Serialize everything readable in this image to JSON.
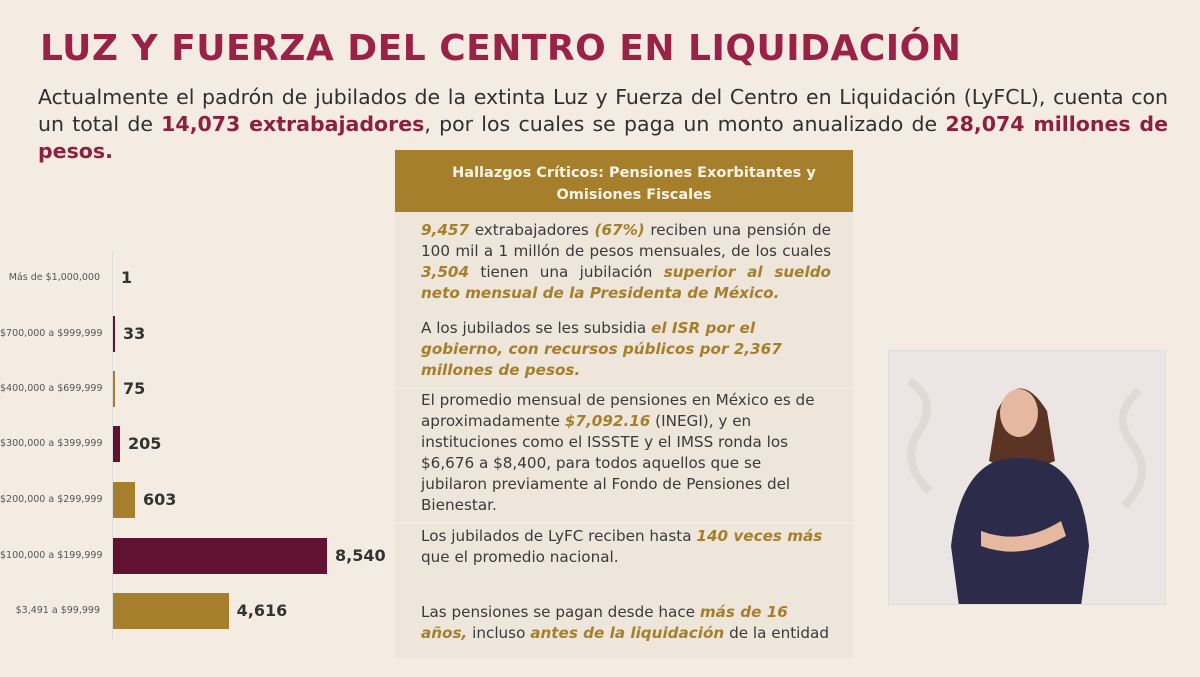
{
  "slide": {
    "title": "LUZ Y FUERZA DEL CENTRO EN LIQUIDACIÓN",
    "intro": [
      {
        "text": "Actualmente el padrón de jubilados de la extinta Luz y Fuerza del Centro en Liquidación (LyFCL), cuenta con un total de ",
        "hl": false
      },
      {
        "text": "14,073 extrabajadores",
        "hl": true
      },
      {
        "text": ", por los cuales se paga un monto anualizado de ",
        "hl": false
      },
      {
        "text": "28,074 millones de pesos.",
        "hl": true
      }
    ]
  },
  "panel": {
    "header": "Hallazgos Críticos: Pensiones Exorbitantes y Omisiones Fiscales",
    "paragraphs": [
      [
        {
          "text": "9,457",
          "hl": true
        },
        {
          "text": " extrabajadores ",
          "hl": false
        },
        {
          "text": "(67%)",
          "hl": true
        },
        {
          "text": " reciben una pensión de 100 mil a 1 millón de pesos mensuales, de los cuales ",
          "hl": false
        },
        {
          "text": "3,504",
          "hl": true
        },
        {
          "text": " tienen una jubilación ",
          "hl": false
        },
        {
          "text": "superior al sueldo neto mensual de la Presidenta de México.",
          "hl": true
        }
      ],
      [
        {
          "text": "A los jubilados se les subsidia ",
          "hl": false
        },
        {
          "text": "el ISR por el gobierno, con recursos públicos por 2,367 millones de pesos.",
          "hl": true
        }
      ],
      [
        {
          "text": "El promedio mensual de pensiones en México es de aproximadamente ",
          "hl": false
        },
        {
          "text": "$7,092.16",
          "hl": true
        },
        {
          "text": " (INEGI), y en instituciones como  el ISSSTE y el IMSS ronda los $6,676 a $8,400, para todos aquellos que se jubilaron previamente al Fondo de Pensiones del Bienestar.",
          "hl": false
        }
      ],
      [
        {
          "text": "Los jubilados de LyFC reciben hasta ",
          "hl": false
        },
        {
          "text": "140 veces más",
          "hl": true
        },
        {
          "text": " que el promedio nacional.",
          "hl": false
        }
      ],
      [
        {
          "text": "Las pensiones se pagan desde hace ",
          "hl": false
        },
        {
          "text": "más de 16 años,",
          "hl": true
        },
        {
          "text": " incluso ",
          "hl": false
        },
        {
          "text": "antes de la liquidación",
          "hl": true
        },
        {
          "text": " de la entidad",
          "hl": false
        }
      ]
    ]
  },
  "chart_data": {
    "type": "bar",
    "orientation": "horizontal",
    "categories": [
      "Más de $1,000,000",
      "$700,000 a $999,999",
      "$400,000 a $699,999",
      "$300,000 a $399,999",
      "$200,000 a $299,999",
      "$100,000 a $199,999",
      "$3,491 a $99,999"
    ],
    "values": [
      1,
      33,
      75,
      205,
      603,
      8540,
      4616
    ],
    "labels": [
      "1",
      "33",
      "75",
      "205",
      "603",
      "8,540",
      "4,616"
    ],
    "bar_colors": [
      "#611232",
      "#611232",
      "#a57f2c",
      "#611232",
      "#a57f2c",
      "#611232",
      "#a57f2c"
    ],
    "grid": false
  },
  "colors": {
    "title": "#9b2247",
    "gold": "#a57f2c",
    "maroon": "#611232"
  }
}
